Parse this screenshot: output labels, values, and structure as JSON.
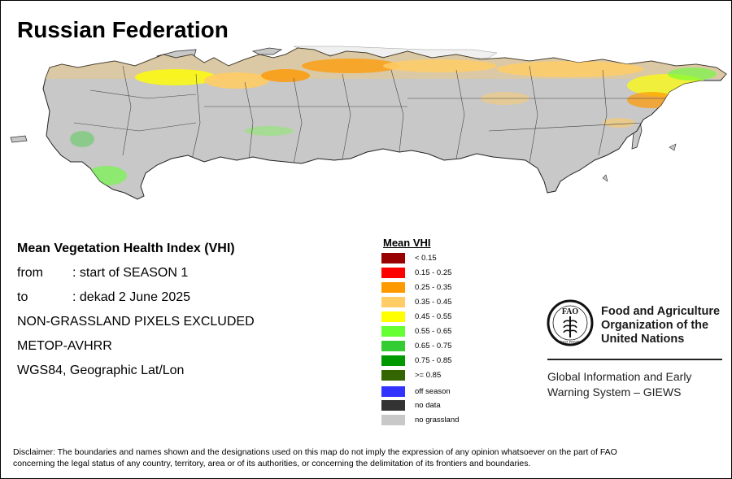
{
  "title": "Russian Federation",
  "info": {
    "heading": "Mean Vegetation Health Index (VHI)",
    "from_label": "from",
    "from_value": ": start of SEASON 1",
    "to_label": "to",
    "to_value": ": dekad 2 June 2025",
    "line_non_grassland": "NON-GRASSLAND PIXELS EXCLUDED",
    "line_sensor": "METOP-AVHRR",
    "line_projection": "WGS84, Geographic Lat/Lon"
  },
  "legend": {
    "title": "Mean VHI",
    "classes": [
      {
        "label": "< 0.15",
        "color": "#990000"
      },
      {
        "label": "0.15 - 0.25",
        "color": "#ff0000"
      },
      {
        "label": "0.25 - 0.35",
        "color": "#ff9900"
      },
      {
        "label": "0.35 - 0.45",
        "color": "#ffcc66"
      },
      {
        "label": "0.45 - 0.55",
        "color": "#ffff00"
      },
      {
        "label": "0.55 - 0.65",
        "color": "#66ff33"
      },
      {
        "label": "0.65 - 0.75",
        "color": "#33cc33"
      },
      {
        "label": "0.75 - 0.85",
        "color": "#009900"
      },
      {
        "label": ">= 0.85",
        "color": "#336600"
      }
    ],
    "extra": [
      {
        "label": "off season",
        "color": "#3333ff"
      },
      {
        "label": "no data",
        "color": "#333333"
      },
      {
        "label": "no grassland",
        "color": "#c8c8c8"
      }
    ]
  },
  "map": {
    "land_color": "#c8c8c8",
    "no_data_color": "#f0f0f0",
    "border_color": "#333333"
  },
  "fao": {
    "logo_letters": "FAO",
    "logo_motto": "FIAT PANIS",
    "name_line1": "Food and Agriculture",
    "name_line2": "Organization of the",
    "name_line3": "United Nations"
  },
  "giews": {
    "line1": "Global Information and Early",
    "line2": "Warning System – GIEWS"
  },
  "disclaimer": {
    "line1": "Disclaimer: The boundaries and names shown and the designations used on this map do not imply the expression of any opinion whatsoever on the part of FAO",
    "line2": "concerning the legal status of any country, territory, area or of its authorities, or concerning the delimitation of its frontiers and boundaries."
  }
}
